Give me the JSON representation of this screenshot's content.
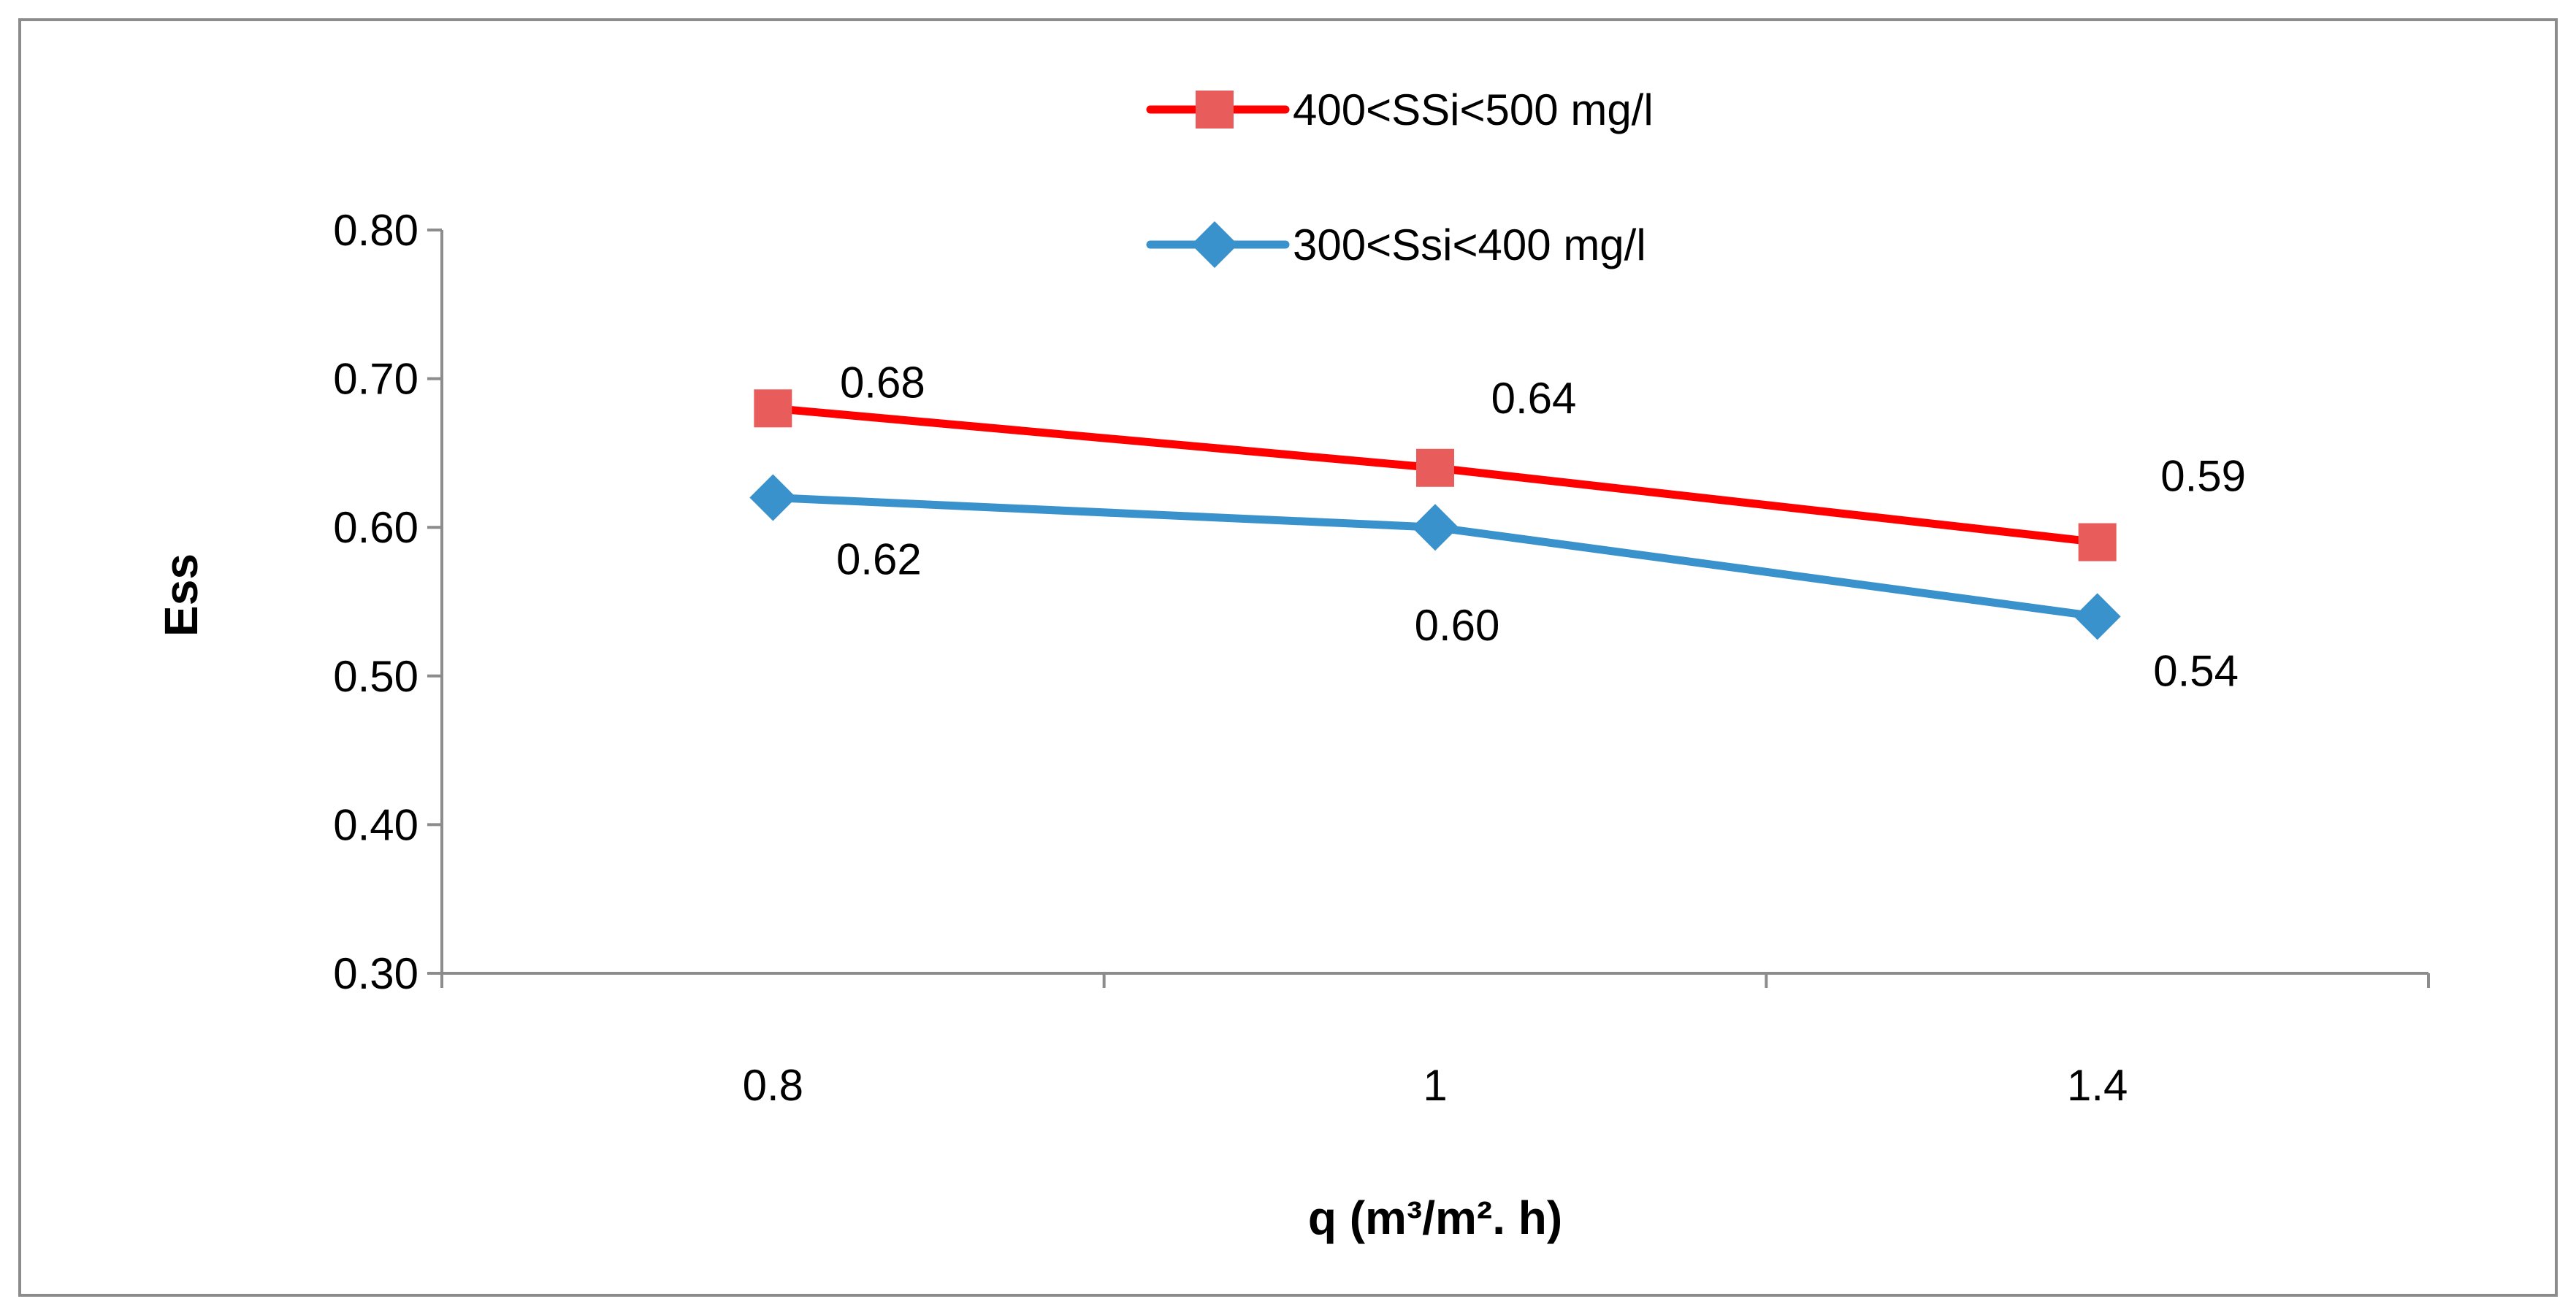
{
  "chart_data": {
    "type": "line",
    "title": "",
    "xlabel": "q (m³/m². h)",
    "ylabel": "Ess",
    "categories": [
      "0.8",
      "1",
      "1.4"
    ],
    "ylim": [
      0.3,
      0.8
    ],
    "yticks": [
      "0.30",
      "0.40",
      "0.50",
      "0.60",
      "0.70",
      "0.80"
    ],
    "grid": false,
    "legend_position": "top-right",
    "series": [
      {
        "name": "400<SSi<500 mg/l",
        "values": [
          0.68,
          0.64,
          0.59
        ],
        "labels": [
          "0.68",
          "0.64",
          "0.59"
        ],
        "color": "#ff0000",
        "marker_color": "#e85c5c",
        "marker": "square"
      },
      {
        "name": "300<Ssi<400 mg/l",
        "values": [
          0.62,
          0.6,
          0.54
        ],
        "labels": [
          "0.62",
          "0.60",
          "0.54"
        ],
        "color": "#3a92cc",
        "marker_color": "#3a92cc",
        "marker": "diamond"
      }
    ]
  }
}
